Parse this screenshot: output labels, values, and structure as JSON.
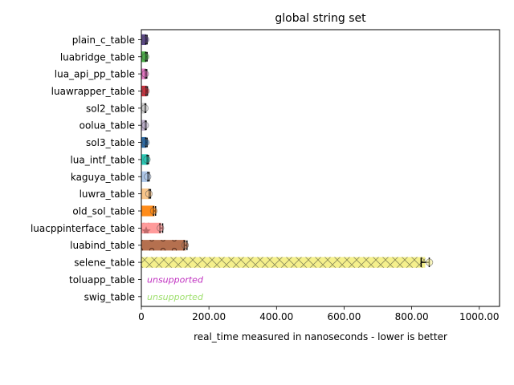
{
  "chart_data": {
    "type": "bar",
    "orientation": "horizontal",
    "title": "global string set",
    "xlabel": "real_time measured in nanoseconds - lower is better",
    "ylabel": "",
    "xlim": [
      0,
      1060
    ],
    "x_ticks": [
      0,
      200,
      400,
      600,
      800,
      1000
    ],
    "x_tick_labels": [
      "0",
      "200.00",
      "400.00",
      "600.00",
      "800.00",
      "1000.00"
    ],
    "grid": false,
    "categories": [
      "plain_c_table",
      "luabridge_table",
      "lua_api_pp_table",
      "luawrapper_table",
      "sol2_table",
      "oolua_table",
      "sol3_table",
      "lua_intf_table",
      "kaguya_table",
      "luwra_table",
      "old_sol_table",
      "luacppinterface_table",
      "luabind_table",
      "selene_table",
      "toluapp_table",
      "swig_table"
    ],
    "values": [
      15,
      15,
      14,
      16,
      12,
      13,
      15,
      19,
      21,
      25,
      39,
      59,
      131,
      840,
      null,
      null
    ],
    "error": [
      2,
      2,
      2,
      2,
      1,
      1,
      2,
      2,
      2,
      2,
      3,
      4,
      4,
      12,
      null,
      null
    ],
    "sample_max": [
      22,
      22,
      21,
      23,
      20,
      21,
      23,
      26,
      28,
      32,
      46,
      66,
      139,
      862,
      null,
      null
    ],
    "colors": [
      "#5e4b8b",
      "#4daf4a",
      "#e377c2",
      "#c8333f",
      "#cccccc",
      "#bcaec9",
      "#2f6da8",
      "#2ac7b4",
      "#aec7e8",
      "#f8c58a",
      "#ff8c1a",
      "#ff9b9b",
      "#b5704f",
      "#f5f08c",
      "#ffffff",
      "#ffffff"
    ],
    "hatches": [
      "",
      "",
      "",
      "",
      "",
      "",
      "",
      "",
      "",
      "",
      "",
      "star",
      "circle",
      "cross",
      "",
      ""
    ],
    "unsupported_label": "unsupported",
    "unsupported_colors": [
      "#c030c0",
      "#a0e070"
    ]
  }
}
